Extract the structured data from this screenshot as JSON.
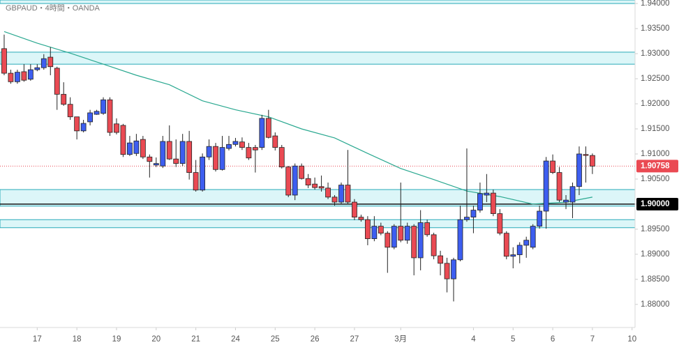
{
  "chart_data": {
    "type": "candlestick",
    "title": "GBPAUD・4時間・OANDA",
    "x": [
      0,
      1,
      2,
      3,
      4,
      5,
      6,
      7,
      8,
      9,
      10,
      11,
      12,
      13,
      14,
      15,
      16,
      17,
      18,
      19,
      20,
      21,
      22,
      23,
      24,
      25,
      26,
      27,
      28,
      29,
      30,
      31,
      32,
      33,
      34,
      35,
      36,
      37,
      38,
      39,
      40,
      41,
      42,
      43,
      44,
      45,
      46,
      47,
      48,
      49,
      50,
      51,
      52,
      53,
      54,
      55,
      56,
      57,
      58,
      59,
      60,
      61,
      62,
      63,
      64,
      65,
      66,
      67,
      68,
      69,
      70,
      71,
      72,
      73,
      74,
      75,
      76,
      77,
      78,
      79,
      80,
      81,
      82,
      83,
      84,
      85,
      86,
      87,
      88,
      89
    ],
    "open": [
      1.931,
      1.9261,
      1.9244,
      1.9264,
      1.9249,
      1.9268,
      1.9272,
      1.9293,
      1.9271,
      1.9219,
      1.9199,
      1.9174,
      1.9146,
      1.9164,
      1.9179,
      1.9181,
      1.9208,
      1.916,
      1.9157,
      1.9099,
      1.9101,
      1.9129,
      1.9094,
      1.9078,
      1.9076,
      1.9125,
      1.909,
      1.9081,
      1.9125,
      1.9063,
      1.9028,
      1.9094,
      1.9115,
      1.9069,
      1.9111,
      1.9119,
      1.9124,
      1.9113,
      1.9113,
      1.9113,
      1.9171,
      1.9136,
      1.9113,
      1.9074,
      1.9018,
      1.9076,
      1.9051,
      1.904,
      1.9035,
      1.9032,
      1.9014,
      1.9004,
      1.9038,
      1.9004,
      1.8974,
      1.8969,
      1.8931,
      1.8956,
      1.8942,
      1.8914,
      1.8956,
      1.8928,
      1.8956,
      1.8893,
      1.8963,
      1.8939,
      1.8897,
      1.8882,
      1.8851,
      1.8889,
      1.8969,
      1.8974,
      1.8988,
      1.9018,
      1.9022,
      1.8981,
      1.8942,
      1.8896,
      1.8899,
      1.8918,
      1.8914,
      1.8956,
      1.8986,
      1.9086,
      1.9063,
      1.9004,
      1.9004,
      1.9035,
      1.9099,
      1.9097
    ],
    "high": [
      1.9338,
      1.9268,
      1.9268,
      1.9279,
      1.9279,
      1.9279,
      1.9299,
      1.9313,
      1.9274,
      1.9243,
      1.9213,
      1.9174,
      1.9168,
      1.9188,
      1.9188,
      1.9213,
      1.9213,
      1.9171,
      1.916,
      1.9136,
      1.914,
      1.9136,
      1.9099,
      1.9093,
      1.9136,
      1.9157,
      1.9129,
      1.914,
      1.9146,
      1.9088,
      1.9101,
      1.9129,
      1.9122,
      1.9136,
      1.9136,
      1.9132,
      1.9133,
      1.9122,
      1.9118,
      1.9178,
      1.9188,
      1.9143,
      1.9118,
      1.9076,
      1.9081,
      1.9081,
      1.906,
      1.9053,
      1.9057,
      1.9043,
      1.9018,
      1.9043,
      1.9108,
      1.901,
      1.8979,
      1.8976,
      1.8976,
      1.8963,
      1.8946,
      1.896,
      1.9043,
      1.8963,
      1.896,
      1.8988,
      1.8969,
      1.8943,
      1.8907,
      1.8893,
      1.8893,
      1.8997,
      1.9111,
      1.8997,
      1.9043,
      1.906,
      1.9029,
      1.899,
      1.8946,
      1.8914,
      1.8924,
      1.8935,
      1.896,
      1.8997,
      1.9094,
      1.9099,
      1.9074,
      1.9018,
      1.9043,
      1.9115,
      1.9115,
      1.9101
    ],
    "low": [
      1.9257,
      1.924,
      1.924,
      1.9244,
      1.9246,
      1.9265,
      1.9268,
      1.9257,
      1.9188,
      1.9196,
      1.9168,
      1.9129,
      1.9143,
      1.9157,
      1.9178,
      1.9178,
      1.9136,
      1.9139,
      1.9094,
      1.9096,
      1.9096,
      1.909,
      1.9053,
      1.9074,
      1.9072,
      1.9088,
      1.9074,
      1.9076,
      1.9049,
      1.9025,
      1.9025,
      1.9088,
      1.9065,
      1.9067,
      1.9107,
      1.9115,
      1.9108,
      1.9088,
      1.9063,
      1.9108,
      1.9131,
      1.9107,
      1.9071,
      1.9014,
      1.9008,
      1.9049,
      1.9032,
      1.9029,
      1.9025,
      1.901,
      1.8997,
      1.9001,
      1.9001,
      1.8968,
      1.8965,
      1.8918,
      1.8926,
      1.8938,
      1.8863,
      1.891,
      1.8924,
      1.8921,
      1.8858,
      1.8868,
      1.8935,
      1.889,
      1.8858,
      1.8824,
      1.8806,
      1.8886,
      1.8965,
      1.8942,
      1.8983,
      1.9004,
      1.8976,
      1.8938,
      1.889,
      1.8872,
      1.8882,
      1.8893,
      1.891,
      1.8951,
      1.8951,
      1.906,
      1.9004,
      1.899,
      1.8972,
      1.9018,
      1.9043,
      1.906
    ],
    "close": [
      1.9261,
      1.9244,
      1.9263,
      1.9247,
      1.9268,
      1.9272,
      1.929,
      1.9274,
      1.9219,
      1.9199,
      1.9174,
      1.9146,
      1.9161,
      1.9182,
      1.9185,
      1.9208,
      1.9143,
      1.9143,
      1.9099,
      1.9122,
      1.9126,
      1.9094,
      1.9085,
      1.9081,
      1.9125,
      1.909,
      1.9081,
      1.9125,
      1.9063,
      1.9028,
      1.9094,
      1.9115,
      1.9069,
      1.9113,
      1.9119,
      1.9125,
      1.9113,
      1.9092,
      1.9108,
      1.9171,
      1.9133,
      1.9113,
      1.9074,
      1.9018,
      1.9076,
      1.9051,
      1.9038,
      1.9033,
      1.9032,
      1.9014,
      1.9004,
      1.9038,
      1.9004,
      1.8974,
      1.8969,
      1.8931,
      1.8956,
      1.8942,
      1.8914,
      1.8956,
      1.8928,
      1.8956,
      1.8893,
      1.8963,
      1.8939,
      1.8897,
      1.8882,
      1.8851,
      1.8889,
      1.8969,
      1.8974,
      1.8988,
      1.9021,
      1.9022,
      1.8981,
      1.8942,
      1.8896,
      1.8899,
      1.8918,
      1.8928,
      1.8956,
      1.8986,
      1.9086,
      1.9063,
      1.9008,
      1.9008,
      1.9035,
      1.91,
      1.9097,
      1.90758
    ],
    "up_color": "#3d5ef0",
    "down_color": "#ea4a53",
    "ma": {
      "color": "#2aa890",
      "x": [
        0,
        5,
        10,
        15,
        20,
        25,
        30,
        35,
        40,
        45,
        50,
        55,
        60,
        65,
        70,
        75,
        80,
        85,
        89
      ],
      "values": [
        1.9344,
        1.9321,
        1.9301,
        1.9279,
        1.9257,
        1.9238,
        1.9206,
        1.9188,
        1.9174,
        1.915,
        1.9132,
        1.9101,
        1.9071,
        1.9049,
        1.9026,
        1.9015,
        1.9,
        1.9004,
        1.9014
      ]
    },
    "zones": {
      "color": "#dcf6f8",
      "border": "#27a9b8",
      "ranges": [
        [
          1.9407,
          1.94
        ],
        [
          1.9303,
          1.9279
        ],
        [
          1.9029,
          1.8996
        ],
        [
          1.8969,
          1.8953
        ]
      ]
    },
    "price_lines": [
      {
        "value": 1.9,
        "label": "1.90000",
        "color": "#000000",
        "style": "solid"
      },
      {
        "value": 1.90758,
        "label": "1.90758",
        "color": "#ea4a53",
        "style": "dotted"
      }
    ],
    "xlim": [
      -0.63,
      95.45
    ],
    "ylim": [
      1.8754,
      1.9407
    ],
    "xticks": [
      {
        "value": 5,
        "label": "17"
      },
      {
        "value": 11,
        "label": "18"
      },
      {
        "value": 17,
        "label": "19"
      },
      {
        "value": 23,
        "label": "20"
      },
      {
        "value": 29,
        "label": "21"
      },
      {
        "value": 35,
        "label": "24"
      },
      {
        "value": 41,
        "label": "25"
      },
      {
        "value": 47,
        "label": "26"
      },
      {
        "value": 53,
        "label": "27"
      },
      {
        "value": 60,
        "label": "3月"
      },
      {
        "value": 71,
        "label": "4"
      },
      {
        "value": 77,
        "label": "5"
      },
      {
        "value": 83,
        "label": "6"
      },
      {
        "value": 89,
        "label": "7"
      },
      {
        "value": 95,
        "label": "10"
      }
    ],
    "yticks": [
      {
        "value": 1.88,
        "label": "1.88000"
      },
      {
        "value": 1.885,
        "label": "1.88500"
      },
      {
        "value": 1.89,
        "label": "1.89000"
      },
      {
        "value": 1.895,
        "label": "1.89500"
      },
      {
        "value": 1.9,
        "label": "1.90000"
      },
      {
        "value": 1.905,
        "label": "1.90500"
      },
      {
        "value": 1.91,
        "label": "1.91000"
      },
      {
        "value": 1.915,
        "label": "1.91500"
      },
      {
        "value": 1.92,
        "label": "1.92000"
      },
      {
        "value": 1.925,
        "label": "1.92500"
      },
      {
        "value": 1.93,
        "label": "1.93000"
      },
      {
        "value": 1.935,
        "label": "1.93500"
      },
      {
        "value": 1.94,
        "label": "1.94000"
      }
    ]
  }
}
